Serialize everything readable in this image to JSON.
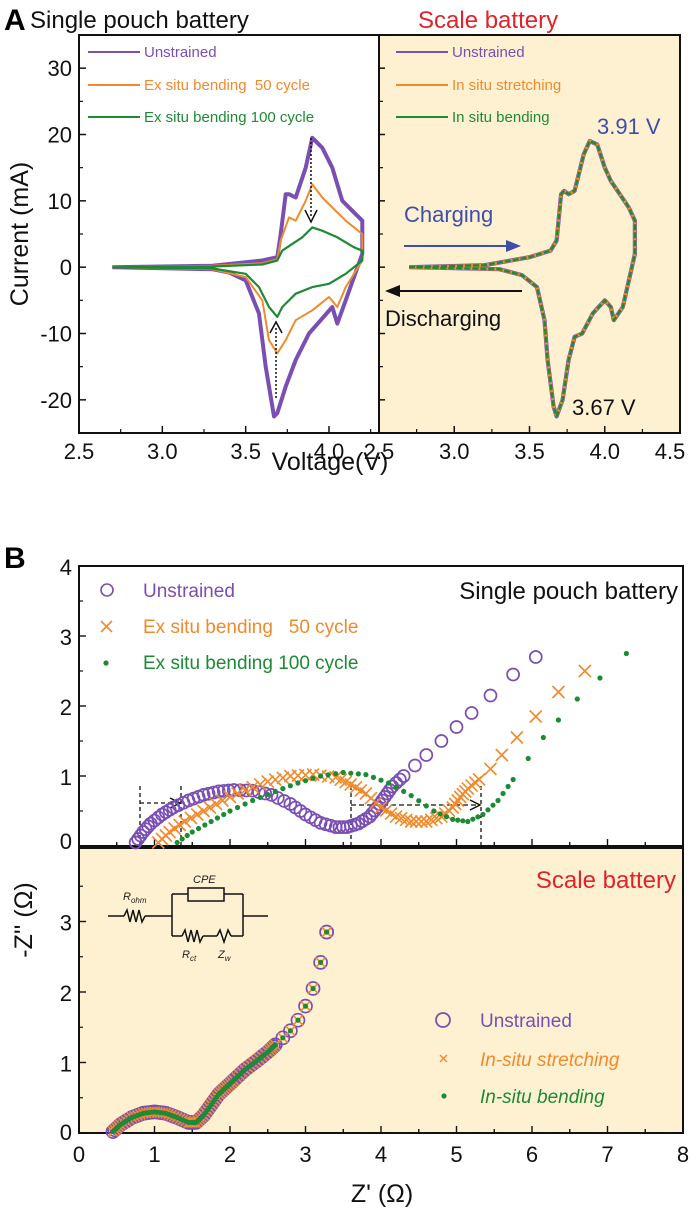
{
  "panel_labels": {
    "a": "A",
    "b": "B"
  },
  "colors": {
    "purple": "#7a4fb3",
    "orange": "#f08a2c",
    "green": "#1e8a36",
    "blue": "#3f4fa8",
    "red": "#e0232a",
    "scale_bg": "#fdf1d2",
    "black": "#111111"
  },
  "chart_data": [
    {
      "id": "A-left",
      "type": "line",
      "title": "Single pouch battery",
      "xlabel": "Voltage(V)",
      "ylabel": "Current (mA)",
      "xlim": [
        2.5,
        4.3
      ],
      "ylim": [
        -25,
        35
      ],
      "xticks": [
        "2.5",
        "3.0",
        "3.5",
        "4.0"
      ],
      "yticks": [
        "30",
        "20",
        "10",
        "0",
        "-10",
        "-20"
      ],
      "legend": [
        "Unstrained",
        "Ex situ bending  50 cycle",
        "Ex situ bending 100 cycle"
      ],
      "legend_position": "top-left",
      "series": [
        {
          "name": "Unstrained",
          "color": "purple",
          "x": [
            2.7,
            3.3,
            3.6,
            3.69,
            3.71,
            3.74,
            3.76,
            3.8,
            3.86,
            3.9,
            3.96,
            4.02,
            4.08,
            4.2,
            4.2,
            4.1,
            4.05,
            4.02,
            3.95,
            3.88,
            3.8,
            3.74,
            3.69,
            3.67,
            3.62,
            3.58,
            3.5,
            3.4,
            3.3,
            2.7
          ],
          "y": [
            0,
            0.2,
            1,
            1.5,
            5,
            11,
            11,
            10.5,
            15,
            19.5,
            18,
            15,
            10,
            7,
            2,
            -5,
            -8.5,
            -6,
            -8,
            -10,
            -14,
            -18,
            -22,
            -22.5,
            -15,
            -7,
            -2,
            -0.8,
            -0.3,
            0
          ]
        },
        {
          "name": "Ex situ bending  50 cycle",
          "color": "orange",
          "x": [
            2.7,
            3.3,
            3.6,
            3.69,
            3.71,
            3.76,
            3.8,
            3.86,
            3.9,
            3.96,
            4.02,
            4.1,
            4.2,
            4.2,
            4.1,
            4.05,
            4.0,
            3.9,
            3.8,
            3.74,
            3.69,
            3.64,
            3.6,
            3.5,
            3.3,
            2.7
          ],
          "y": [
            0,
            0.2,
            0.6,
            1.2,
            4,
            7.5,
            7,
            10,
            12.5,
            10.5,
            9,
            7,
            5,
            1,
            -3,
            -6,
            -4.5,
            -6.5,
            -8,
            -11,
            -13,
            -11,
            -5,
            -1.5,
            -0.3,
            0
          ]
        },
        {
          "name": "Ex situ bending 100 cycle",
          "color": "green",
          "x": [
            2.7,
            3.3,
            3.6,
            3.69,
            3.72,
            3.78,
            3.84,
            3.9,
            3.96,
            4.05,
            4.15,
            4.2,
            4.2,
            4.1,
            4.0,
            3.9,
            3.8,
            3.72,
            3.69,
            3.64,
            3.58,
            3.5,
            3.3,
            2.7
          ],
          "y": [
            0,
            0.1,
            0.4,
            1,
            2.5,
            3.5,
            4.5,
            6,
            5.5,
            4.5,
            3,
            2.5,
            1,
            -1,
            -2.5,
            -3,
            -4,
            -6,
            -7.5,
            -6,
            -3,
            -1,
            -0.2,
            0
          ]
        }
      ],
      "annotations": [
        "dotted arrow downward at 3.9 V from unstrained peak to 100-cycle peak",
        "dotted arrow upward at 3.68 V from unstrained trough to 100-cycle trough"
      ]
    },
    {
      "id": "A-right",
      "type": "line",
      "title": "Scale battery",
      "xlabel": "Voltage(V)",
      "ylabel": "",
      "xlim": [
        2.5,
        4.5
      ],
      "ylim": [
        -25,
        35
      ],
      "xticks": [
        "2.5",
        "3.0",
        "3.5",
        "4.0",
        "4.5"
      ],
      "legend": [
        "Unstrained",
        "In situ stretching",
        "In situ bending"
      ],
      "legend_position": "top-left",
      "series": [
        {
          "name": "Unstrained",
          "color": "purple",
          "x": [
            2.7,
            3.2,
            3.5,
            3.64,
            3.68,
            3.71,
            3.73,
            3.76,
            3.8,
            3.86,
            3.9,
            3.95,
            4.0,
            4.04,
            4.1,
            4.16,
            4.2,
            4.2,
            4.12,
            4.06,
            4.04,
            4.0,
            3.92,
            3.85,
            3.8,
            3.76,
            3.72,
            3.68,
            3.66,
            3.62,
            3.6,
            3.55,
            3.45,
            3.3,
            2.7
          ],
          "y": [
            0,
            0.3,
            1.5,
            2.5,
            4,
            11,
            11.5,
            11,
            11.5,
            17,
            19,
            18.5,
            15,
            13,
            11,
            9,
            7,
            2,
            -6,
            -8,
            -6,
            -5,
            -7,
            -10,
            -10.5,
            -14,
            -20,
            -22.5,
            -21,
            -14,
            -8,
            -3,
            -1.2,
            -0.3,
            0
          ]
        },
        {
          "name": "In situ stretching",
          "color": "orange",
          "same_as": "Unstrained",
          "note": "overlaps Unstrained curve"
        },
        {
          "name": "In situ bending",
          "color": "green",
          "same_as": "Unstrained",
          "note": "overlaps Unstrained curve"
        }
      ],
      "annotations": {
        "peak_label": "3.91 V",
        "trough_label": "3.67 V",
        "charging_label": "Charging",
        "discharging_label": "Discharging"
      }
    },
    {
      "id": "B-top",
      "type": "scatter",
      "title": "Single pouch battery",
      "xlabel": "",
      "ylabel": "-Z'' (Ω)",
      "xlim": [
        0,
        8
      ],
      "ylim": [
        0,
        4
      ],
      "yticks": [
        "4",
        "3",
        "2",
        "1",
        "0"
      ],
      "legend": [
        "Unstrained",
        "Ex situ bending   50 cycle",
        "Ex situ bending 100 cycle"
      ],
      "legend_position": "top-left",
      "series": [
        {
          "name": "Unstrained",
          "marker": "circle",
          "color": "purple",
          "x": [
            0.75,
            0.85,
            0.95,
            1.1,
            1.25,
            1.45,
            1.65,
            1.85,
            2.05,
            2.3,
            2.55,
            2.8,
            3.0,
            3.2,
            3.4,
            3.55,
            3.7,
            3.85,
            3.95,
            4.05,
            4.15,
            4.3,
            4.45,
            4.6,
            4.8,
            5.0,
            5.2,
            5.45,
            5.75,
            6.05
          ],
          "y": [
            0.05,
            0.2,
            0.32,
            0.45,
            0.55,
            0.65,
            0.73,
            0.78,
            0.8,
            0.79,
            0.73,
            0.6,
            0.45,
            0.33,
            0.27,
            0.27,
            0.32,
            0.42,
            0.55,
            0.7,
            0.85,
            1.0,
            1.15,
            1.3,
            1.5,
            1.7,
            1.9,
            2.15,
            2.45,
            2.7
          ]
        },
        {
          "name": "Ex situ bending   50 cycle",
          "marker": "x",
          "color": "orange",
          "x": [
            1.05,
            1.2,
            1.4,
            1.65,
            1.9,
            2.2,
            2.5,
            2.8,
            3.1,
            3.4,
            3.6,
            3.8,
            4.0,
            4.2,
            4.4,
            4.6,
            4.8,
            4.95,
            5.05,
            5.15,
            5.3,
            5.45,
            5.6,
            5.8,
            6.05,
            6.35,
            6.7
          ],
          "y": [
            0.05,
            0.2,
            0.35,
            0.5,
            0.65,
            0.8,
            0.92,
            1.0,
            1.02,
            0.98,
            0.88,
            0.75,
            0.55,
            0.42,
            0.35,
            0.35,
            0.42,
            0.55,
            0.7,
            0.82,
            0.95,
            1.1,
            1.3,
            1.55,
            1.85,
            2.2,
            2.5
          ]
        },
        {
          "name": "Ex situ bending 100 cycle",
          "marker": "dot",
          "color": "green",
          "x": [
            1.3,
            1.5,
            1.75,
            2.0,
            2.3,
            2.6,
            2.9,
            3.2,
            3.5,
            3.8,
            4.1,
            4.4,
            4.7,
            4.95,
            5.15,
            5.35,
            5.55,
            5.75,
            5.95,
            6.15,
            6.35,
            6.6,
            6.9,
            7.25
          ],
          "y": [
            0.05,
            0.2,
            0.35,
            0.5,
            0.65,
            0.78,
            0.9,
            1.0,
            1.05,
            1.02,
            0.9,
            0.72,
            0.5,
            0.38,
            0.35,
            0.45,
            0.65,
            0.95,
            1.25,
            1.55,
            1.8,
            2.1,
            2.4,
            2.75
          ]
        }
      ],
      "annotations": [
        "dashed arrow from 0.8 Ω to 1.3 Ω at -Z''≈0.65",
        "dashed arrow from 3.55 Ω to 5.25 Ω at -Z''≈0.6"
      ]
    },
    {
      "id": "B-bottom",
      "type": "scatter",
      "title": "Scale battery",
      "xlabel": "Z' (Ω)",
      "ylabel": "-Z'' (Ω)",
      "xlim": [
        0,
        8
      ],
      "ylim": [
        0,
        4
      ],
      "xticks": [
        "0",
        "1",
        "2",
        "3",
        "4",
        "5",
        "6",
        "7",
        "8"
      ],
      "yticks": [
        "3",
        "2",
        "1",
        "0"
      ],
      "legend": [
        "Unstrained",
        "In-situ stretching",
        "In-situ bending"
      ],
      "legend_position": "bottom-right",
      "circuit": {
        "r_ohm": "R",
        "r_ohm_sub": "ohm",
        "cpe": "CPE",
        "r_ct": "R",
        "r_ct_sub": "ct",
        "z_w": "Z",
        "z_w_sub": "w"
      },
      "series": [
        {
          "name": "Unstrained",
          "marker": "circle",
          "color": "purple",
          "x": [
            0.45,
            0.55,
            0.7,
            0.85,
            1.0,
            1.15,
            1.3,
            1.45,
            1.55,
            1.65,
            1.75,
            1.85,
            1.95,
            2.05,
            2.2,
            2.35,
            2.5,
            2.6,
            2.7,
            2.8,
            2.9,
            3.0,
            3.1,
            3.2,
            3.28,
            3.4
          ],
          "y": [
            0.02,
            0.12,
            0.22,
            0.28,
            0.3,
            0.28,
            0.22,
            0.15,
            0.15,
            0.25,
            0.4,
            0.55,
            0.65,
            0.75,
            0.9,
            1.02,
            1.15,
            1.25,
            1.35,
            1.45,
            1.6,
            1.8,
            2.05,
            2.42,
            2.85,
            2.85
          ]
        },
        {
          "name": "In-situ stretching",
          "marker": "x",
          "color": "orange",
          "same_as": "Unstrained"
        },
        {
          "name": "In-situ bending",
          "marker": "dot",
          "color": "green",
          "same_as": "Unstrained"
        }
      ]
    }
  ]
}
